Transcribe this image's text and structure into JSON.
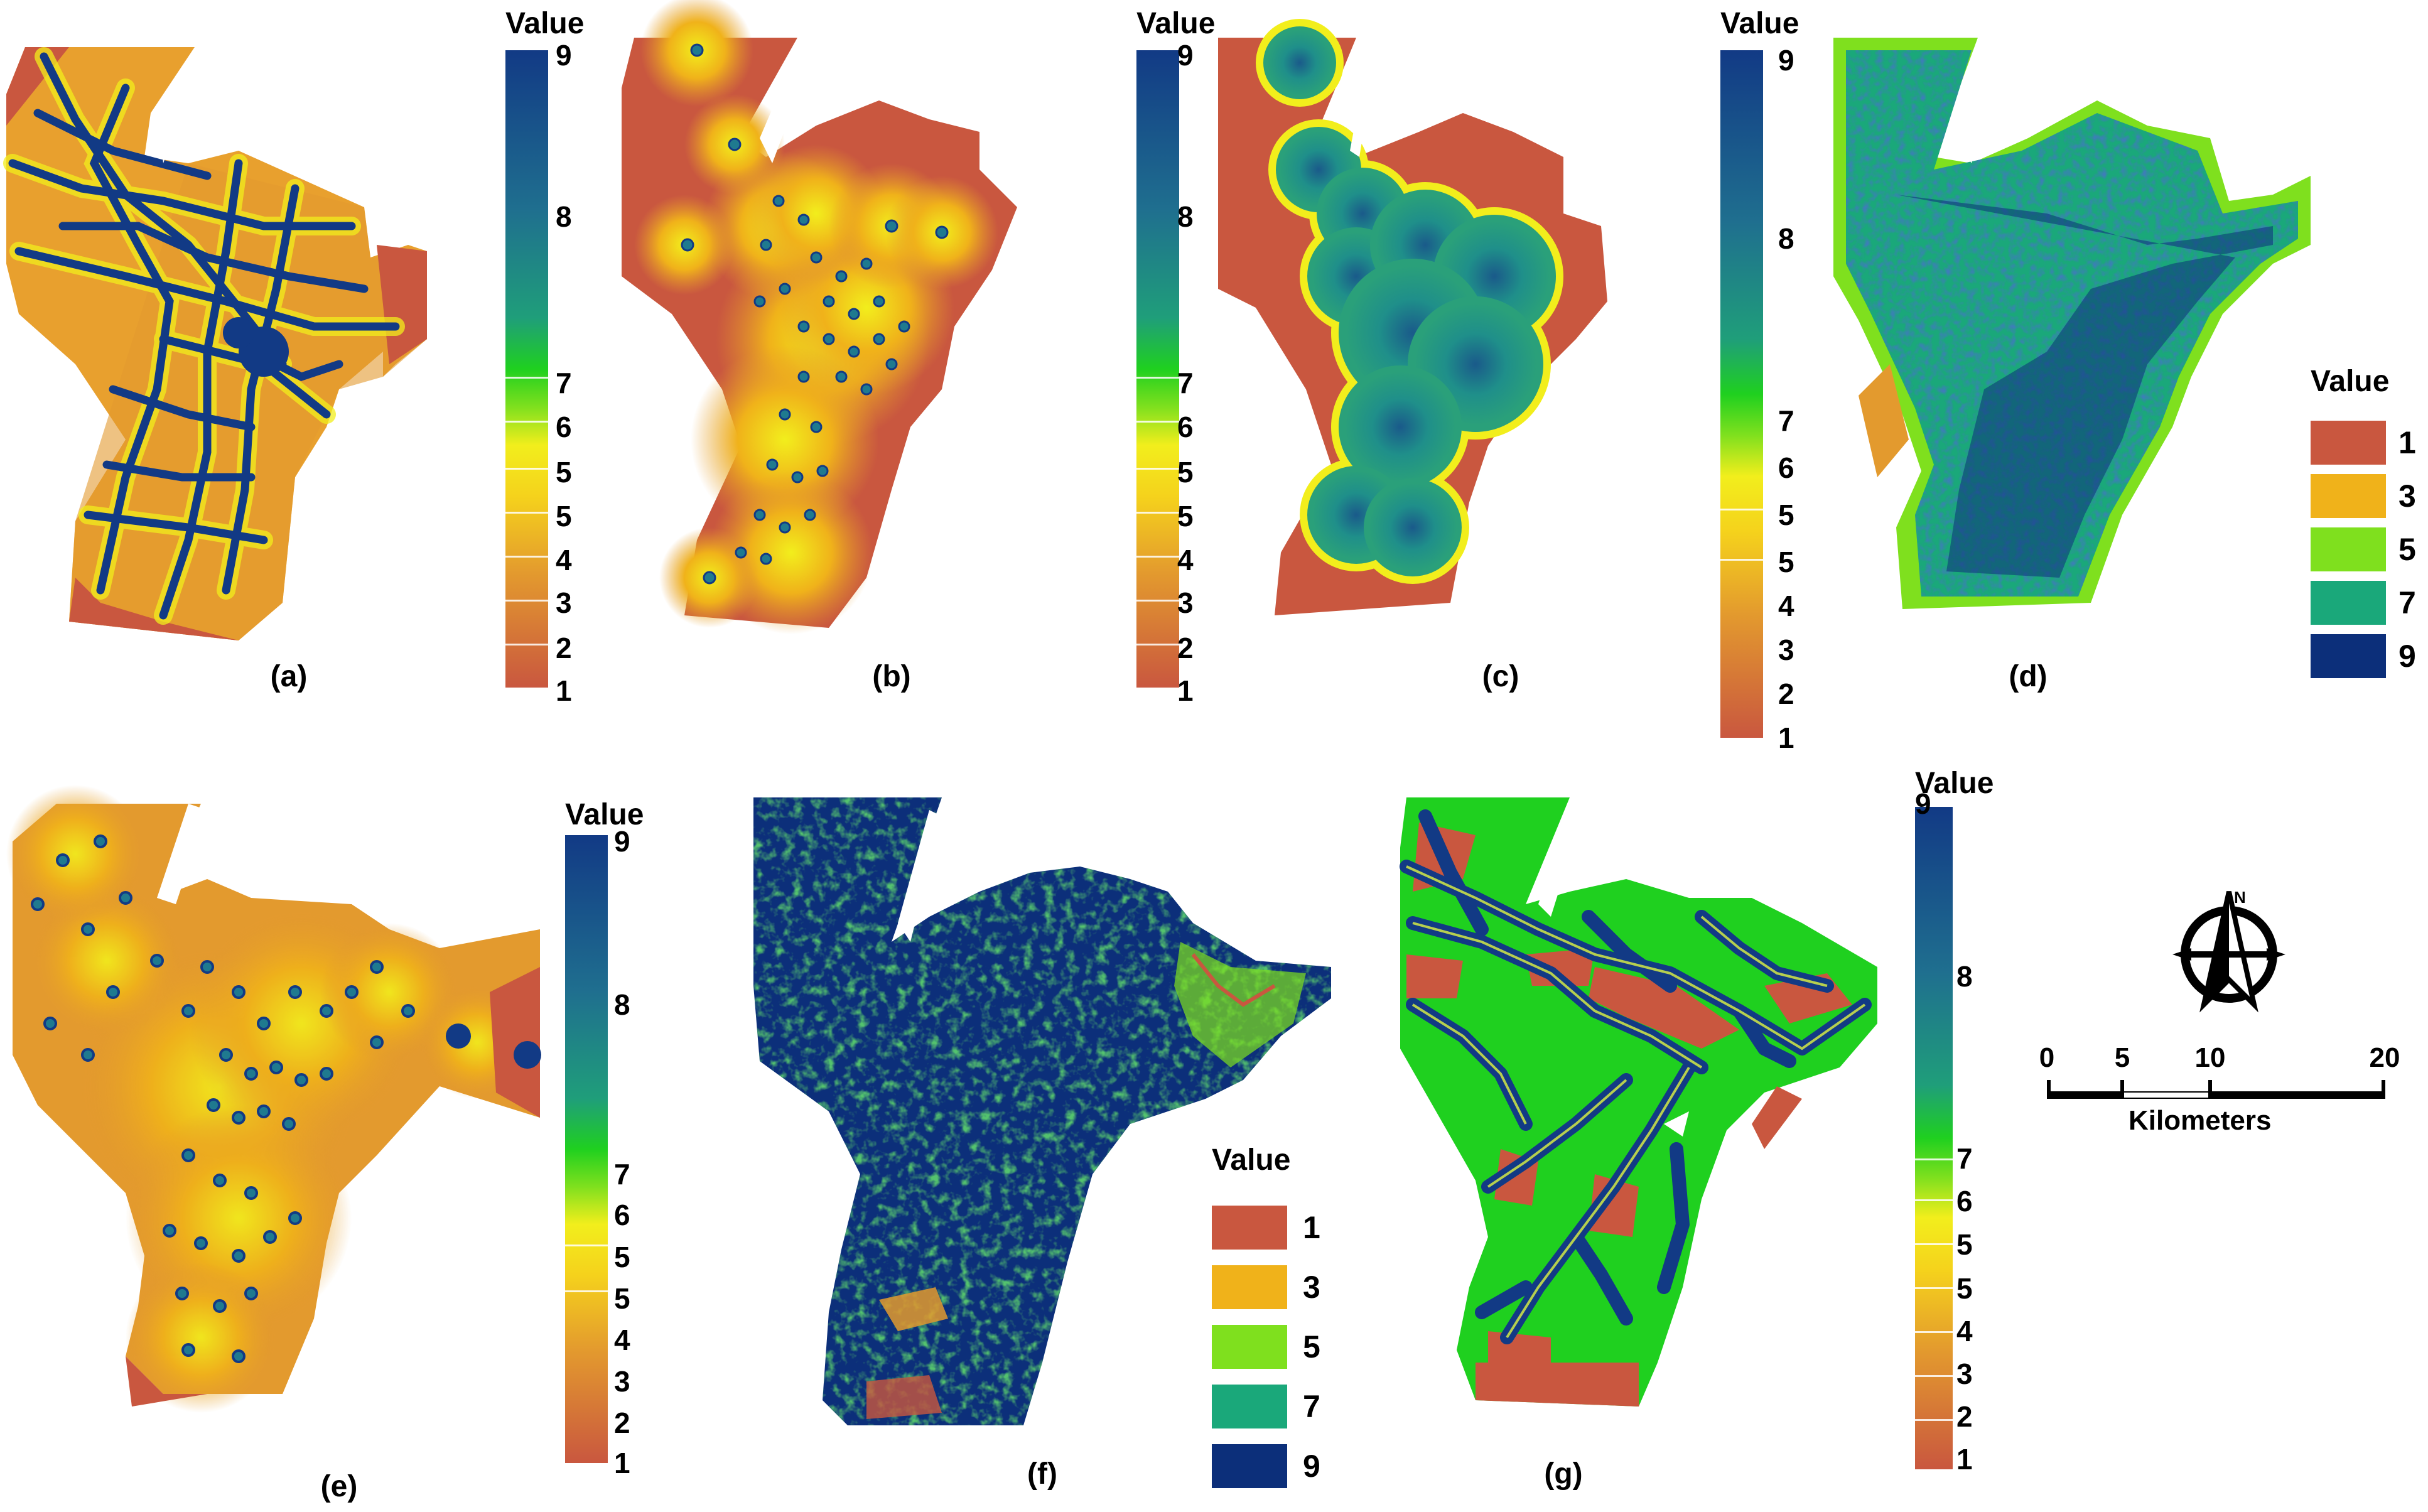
{
  "panels": [
    {
      "label": "(a)"
    },
    {
      "label": "(b)"
    },
    {
      "label": "(c)"
    },
    {
      "label": "(d)"
    },
    {
      "label": "(e)"
    },
    {
      "label": "(f)"
    },
    {
      "label": "(g)"
    }
  ],
  "legend_title": "Value",
  "continuous_ticks": [
    "9",
    "8",
    "7",
    "6",
    "5",
    "5",
    "4",
    "3",
    "2",
    "1"
  ],
  "continuous_ticks_c": [
    "9",
    "8",
    "7",
    "6",
    "5",
    "5",
    "4",
    "3",
    "2",
    "1"
  ],
  "classified_legend": [
    {
      "label": "1",
      "color": "#c9573f"
    },
    {
      "label": "3",
      "color": "#f0b21a"
    },
    {
      "label": "5",
      "color": "#7fe01e"
    },
    {
      "label": "7",
      "color": "#1aa87a"
    },
    {
      "label": "9",
      "color": "#0c2f7a"
    }
  ],
  "scale_bar": {
    "ticks": [
      "0",
      "5",
      "10",
      "20"
    ],
    "unit": "Kilometers"
  },
  "north_arrow": {
    "label": "N",
    "icon": "north-arrow-icon"
  },
  "colors": {
    "low": "#c9573f",
    "mid_low": "#e39a2e",
    "mid": "#f2ee1c",
    "green": "#1fd01f",
    "teal": "#1f8f8a",
    "high": "#123a85"
  }
}
